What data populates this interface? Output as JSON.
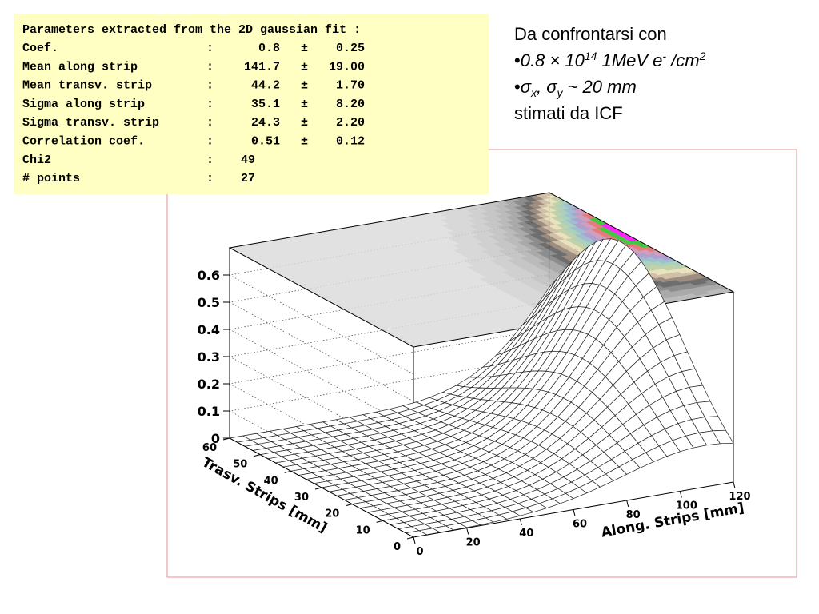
{
  "fit_box": {
    "title": "Parameters extracted from the 2D gaussian fit :",
    "separator": ":",
    "plus_minus": "±",
    "rows": [
      {
        "label": "Coef.",
        "value": "0.8",
        "error": "0.25"
      },
      {
        "label": "Mean along strip",
        "value": "141.7",
        "error": "19.00"
      },
      {
        "label": "Mean transv. strip",
        "value": "44.2",
        "error": "1.70"
      },
      {
        "label": "Sigma along strip",
        "value": "35.1",
        "error": "8.20"
      },
      {
        "label": "Sigma transv. strip",
        "value": "24.3",
        "error": "2.20"
      },
      {
        "label": "Correlation coef.",
        "value": "0.51",
        "error": "0.12"
      },
      {
        "label": "Chi2",
        "value": "49"
      },
      {
        "label": "# points",
        "value": "27"
      }
    ]
  },
  "notes": [
    {
      "segments": [
        {
          "text": "Da confrontarsi con"
        }
      ]
    },
    {
      "segments": [
        {
          "text": "•"
        },
        {
          "text": "0.8 × 10",
          "style": "italic"
        },
        {
          "text": "14",
          "style": "italic-sup"
        },
        {
          "text": " 1MeV e",
          "style": "italic"
        },
        {
          "text": "-",
          "style": "italic-sup"
        },
        {
          "text": " /cm",
          "style": "italic"
        },
        {
          "text": "2",
          "style": "italic-sup"
        }
      ]
    },
    {
      "segments": [
        {
          "text": "•"
        },
        {
          "text": "σ",
          "style": "italic"
        },
        {
          "text": "x",
          "style": "italic-sub"
        },
        {
          "text": ", σ",
          "style": "italic"
        },
        {
          "text": "y",
          "style": "italic-sub"
        },
        {
          "text": " ~ 20 mm",
          "style": "italic"
        }
      ]
    },
    {
      "segments": [
        {
          "text": "stimati da ICF"
        }
      ]
    }
  ],
  "chart_data": {
    "type": "surface3d",
    "x_label": "Along. Strips [mm]",
    "y_label": "Trasv. Strips [mm]",
    "xlim": [
      0,
      120
    ],
    "xticks": [
      0,
      20,
      40,
      60,
      80,
      100,
      120
    ],
    "ylim": [
      0,
      60
    ],
    "yticks": [
      0,
      10,
      20,
      30,
      40,
      50,
      60
    ],
    "zlim": [
      0,
      0.7
    ],
    "zticks": [
      0,
      0.1,
      0.2,
      0.3,
      0.4,
      0.5,
      0.6
    ],
    "grid": true
  }
}
